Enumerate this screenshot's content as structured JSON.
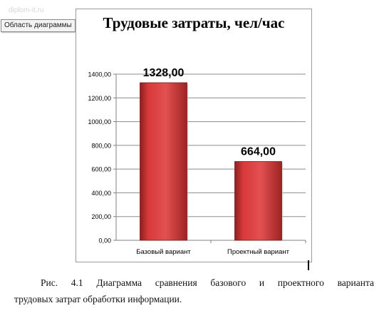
{
  "watermark": "diplom-it.ru",
  "tooltip": "Область диаграммы",
  "caption": {
    "line1_words": [
      "Рис.",
      "4.1",
      "Диаграмма",
      "сравнения",
      "базового",
      "и",
      "проектного",
      "варианта"
    ],
    "line2": "трудовых затрат обработки информации."
  },
  "chart_data": {
    "type": "bar",
    "title": "Трудовые затраты, чел/час",
    "categories": [
      "Базовый вариант",
      "Проектный вариант"
    ],
    "values": [
      1328,
      664
    ],
    "data_labels": [
      "1328,00",
      "664,00"
    ],
    "yticks": [
      "0,00",
      "200,00",
      "400,00",
      "600,00",
      "800,00",
      "1000,00",
      "1200,00",
      "1400,00"
    ],
    "ylim": [
      0,
      1400
    ],
    "grid": true,
    "legend": "none",
    "bar_color": "#d9393a",
    "bar_color_dark": "#8d1f1f"
  }
}
